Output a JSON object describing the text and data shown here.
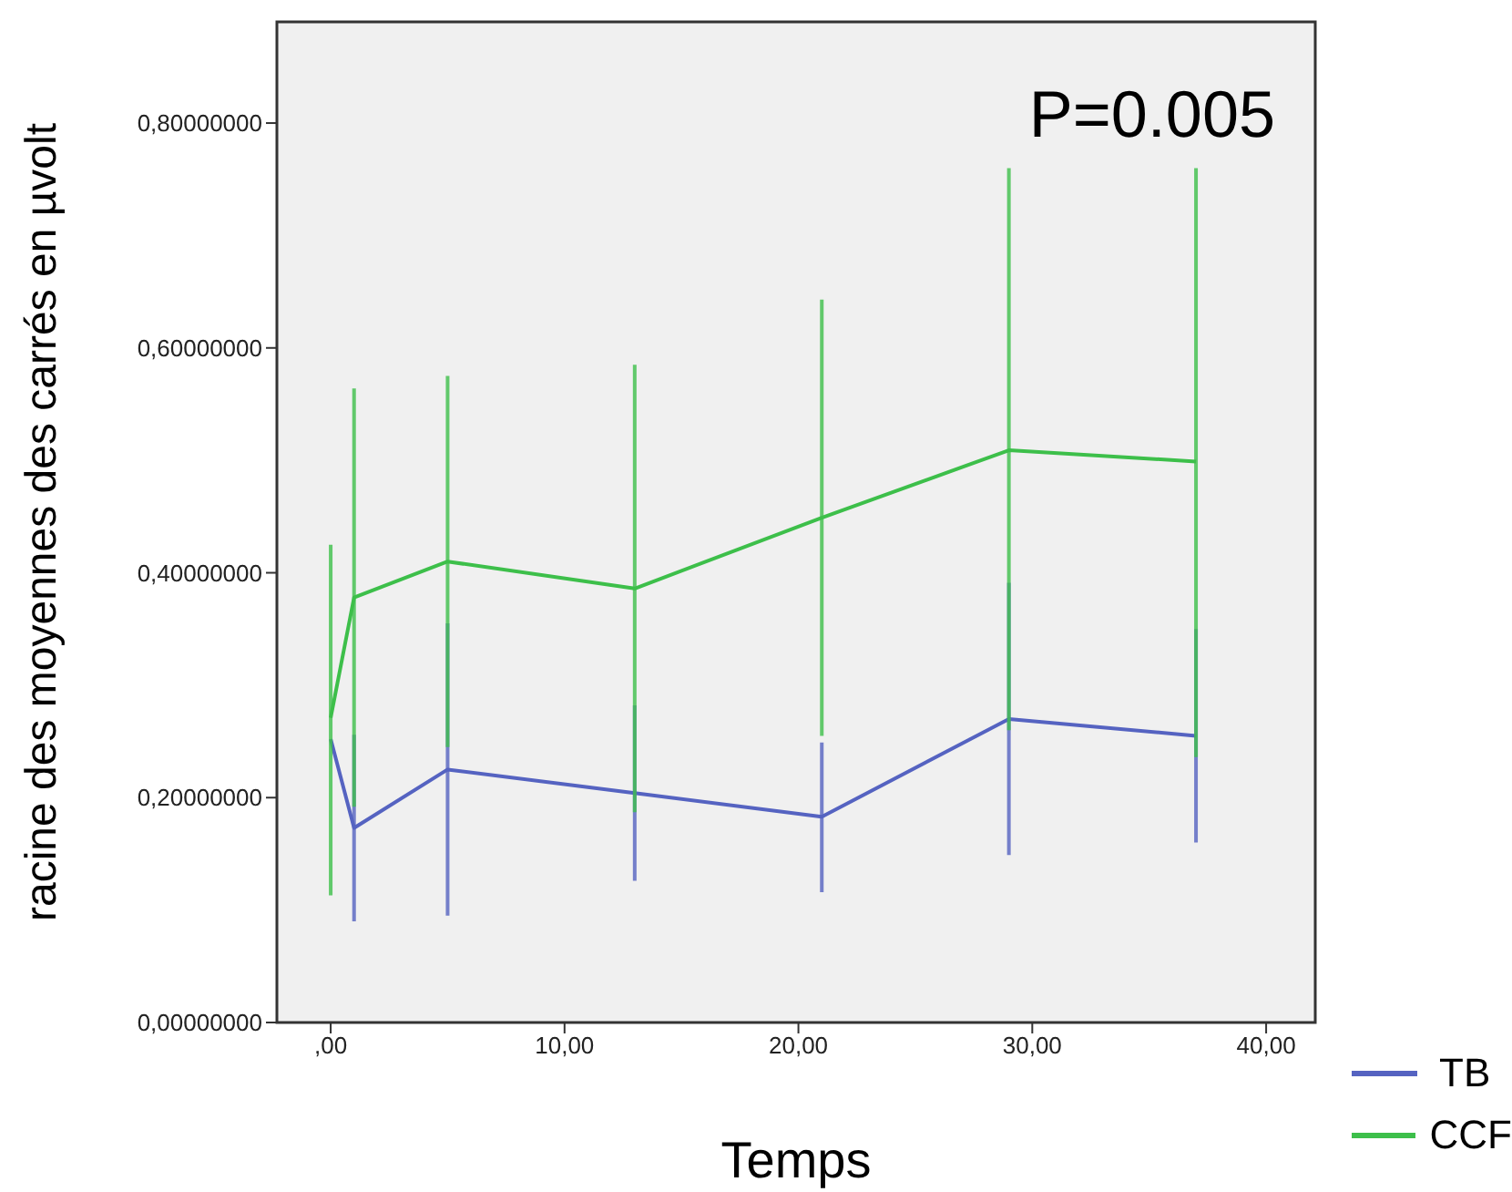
{
  "chart_data": {
    "type": "line",
    "xlabel": "Temps",
    "ylabel": "racine des moyennes des carrés en µvolt",
    "annotations": [
      "P=0.005"
    ],
    "x": [
      0,
      1,
      5,
      13,
      21,
      29,
      37
    ],
    "xlim": [
      -2.3,
      42.1
    ],
    "xticks": [
      {
        "value": 0,
        "label": ",00"
      },
      {
        "value": 10,
        "label": "10,00"
      },
      {
        "value": 20,
        "label": "20,00"
      },
      {
        "value": 30,
        "label": "30,00"
      },
      {
        "value": 40,
        "label": "40,00"
      }
    ],
    "ylim": [
      0,
      0.89
    ],
    "yticks": [
      {
        "value": 0,
        "label": "0,00000000"
      },
      {
        "value": 0.2,
        "label": "0,20000000"
      },
      {
        "value": 0.4,
        "label": "0,40000000"
      },
      {
        "value": 0.6,
        "label": "0,60000000"
      },
      {
        "value": 0.8,
        "label": "0,80000000"
      }
    ],
    "series": [
      {
        "name": "TB",
        "color": "#5563c1",
        "values": [
          0.252,
          0.173,
          0.225,
          0.204,
          0.183,
          0.27,
          0.255
        ],
        "errors": [
          null,
          [
            0.09,
            0.256
          ],
          [
            0.095,
            0.355
          ],
          [
            0.126,
            0.282
          ],
          [
            0.116,
            0.249
          ],
          [
            0.149,
            0.391
          ],
          [
            0.16,
            0.35
          ]
        ]
      },
      {
        "name": "CCF",
        "color": "#3dbf4a",
        "values": [
          0.271,
          0.378,
          0.41,
          0.386,
          0.449,
          0.509,
          0.499
        ],
        "errors": [
          [
            0.113,
            0.425
          ],
          [
            0.192,
            0.564
          ],
          [
            0.245,
            0.575
          ],
          [
            0.187,
            0.585
          ],
          [
            0.255,
            0.643
          ],
          [
            0.26,
            0.76
          ],
          [
            0.236,
            0.76
          ]
        ]
      }
    ],
    "legend": "bottom right",
    "marker": "none",
    "line_style": "solid"
  }
}
